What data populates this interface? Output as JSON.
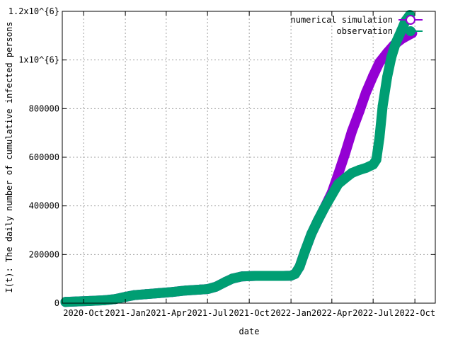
{
  "chart_data": {
    "type": "line",
    "xlabel": "date",
    "ylabel": "I(t): The daily number of cumulative infected persons",
    "ylim": [
      0,
      1200000
    ],
    "xlim": [
      "2020-08-15",
      "2022-11-15"
    ],
    "grid": true,
    "legend_position": "top-right",
    "y_ticks": [
      {
        "value": 0,
        "label": "0"
      },
      {
        "value": 200000,
        "label": "200000"
      },
      {
        "value": 400000,
        "label": "400000"
      },
      {
        "value": 600000,
        "label": "600000"
      },
      {
        "value": 800000,
        "label": "800000"
      },
      {
        "value": 1000000,
        "label": "1x10^{6}"
      },
      {
        "value": 1200000,
        "label": "1.2x10^{6}"
      }
    ],
    "x_ticks": [
      {
        "value": "2020-10-01",
        "label": "2020-Oct"
      },
      {
        "value": "2021-01-01",
        "label": "2021-Jan"
      },
      {
        "value": "2021-04-01",
        "label": "2021-Apr"
      },
      {
        "value": "2021-07-01",
        "label": "2021-Jul"
      },
      {
        "value": "2021-10-01",
        "label": "2021-Oct"
      },
      {
        "value": "2022-01-01",
        "label": "2022-Jan"
      },
      {
        "value": "2022-04-01",
        "label": "2022-Apr"
      },
      {
        "value": "2022-07-01",
        "label": "2022-Jul"
      },
      {
        "value": "2022-10-01",
        "label": "2022-Oct"
      }
    ],
    "series": [
      {
        "name": "numerical simulation",
        "color": "#9400d3",
        "marker": "open-circle",
        "points": [
          [
            "2020-08-22",
            5000
          ],
          [
            "2020-09-15",
            7000
          ],
          [
            "2020-10-15",
            9000
          ],
          [
            "2020-11-15",
            12000
          ],
          [
            "2020-12-10",
            17000
          ],
          [
            "2021-01-01",
            26000
          ],
          [
            "2021-01-20",
            33000
          ],
          [
            "2021-02-15",
            37000
          ],
          [
            "2021-03-15",
            41000
          ],
          [
            "2021-04-15",
            46000
          ],
          [
            "2021-05-15",
            52000
          ],
          [
            "2021-06-15",
            56000
          ],
          [
            "2021-07-01",
            58000
          ],
          [
            "2021-07-20",
            68000
          ],
          [
            "2021-08-10",
            88000
          ],
          [
            "2021-08-25",
            101000
          ],
          [
            "2021-09-15",
            110000
          ],
          [
            "2021-10-15",
            112000
          ],
          [
            "2021-11-15",
            112000
          ],
          [
            "2021-12-15",
            112000
          ],
          [
            "2022-01-01",
            113000
          ],
          [
            "2022-01-10",
            120000
          ],
          [
            "2022-01-20",
            150000
          ],
          [
            "2022-02-01",
            215000
          ],
          [
            "2022-02-15",
            285000
          ],
          [
            "2022-03-01",
            340000
          ],
          [
            "2022-03-15",
            390000
          ],
          [
            "2022-04-01",
            455000
          ],
          [
            "2022-04-15",
            530000
          ],
          [
            "2022-05-01",
            620000
          ],
          [
            "2022-05-15",
            705000
          ],
          [
            "2022-06-01",
            790000
          ],
          [
            "2022-06-15",
            865000
          ],
          [
            "2022-07-01",
            935000
          ],
          [
            "2022-07-15",
            990000
          ],
          [
            "2022-08-01",
            1030000
          ],
          [
            "2022-08-15",
            1060000
          ],
          [
            "2022-09-01",
            1085000
          ],
          [
            "2022-09-15",
            1100000
          ],
          [
            "2022-09-25",
            1110000
          ]
        ]
      },
      {
        "name": "observation",
        "color": "#009e73",
        "marker": "filled-circle",
        "points": [
          [
            "2020-08-22",
            5000
          ],
          [
            "2020-09-15",
            7000
          ],
          [
            "2020-10-15",
            9000
          ],
          [
            "2020-11-15",
            12000
          ],
          [
            "2020-12-10",
            17000
          ],
          [
            "2021-01-01",
            26000
          ],
          [
            "2021-01-20",
            33000
          ],
          [
            "2021-02-15",
            37000
          ],
          [
            "2021-03-15",
            41000
          ],
          [
            "2021-04-15",
            46000
          ],
          [
            "2021-05-15",
            52000
          ],
          [
            "2021-06-15",
            56000
          ],
          [
            "2021-07-01",
            58000
          ],
          [
            "2021-07-20",
            68000
          ],
          [
            "2021-08-10",
            88000
          ],
          [
            "2021-08-25",
            101000
          ],
          [
            "2021-09-15",
            110000
          ],
          [
            "2021-10-15",
            112000
          ],
          [
            "2021-11-15",
            112000
          ],
          [
            "2021-12-15",
            112000
          ],
          [
            "2022-01-01",
            113000
          ],
          [
            "2022-01-10",
            120000
          ],
          [
            "2022-01-20",
            150000
          ],
          [
            "2022-02-01",
            215000
          ],
          [
            "2022-02-15",
            285000
          ],
          [
            "2022-03-01",
            340000
          ],
          [
            "2022-03-15",
            390000
          ],
          [
            "2022-04-01",
            445000
          ],
          [
            "2022-04-15",
            490000
          ],
          [
            "2022-05-01",
            515000
          ],
          [
            "2022-05-15",
            535000
          ],
          [
            "2022-06-01",
            548000
          ],
          [
            "2022-06-15",
            556000
          ],
          [
            "2022-07-01",
            570000
          ],
          [
            "2022-07-08",
            590000
          ],
          [
            "2022-07-15",
            680000
          ],
          [
            "2022-07-22",
            810000
          ],
          [
            "2022-08-01",
            930000
          ],
          [
            "2022-08-10",
            1010000
          ],
          [
            "2022-08-20",
            1070000
          ],
          [
            "2022-09-01",
            1120000
          ],
          [
            "2022-09-10",
            1160000
          ],
          [
            "2022-09-20",
            1185000
          ]
        ]
      }
    ]
  }
}
